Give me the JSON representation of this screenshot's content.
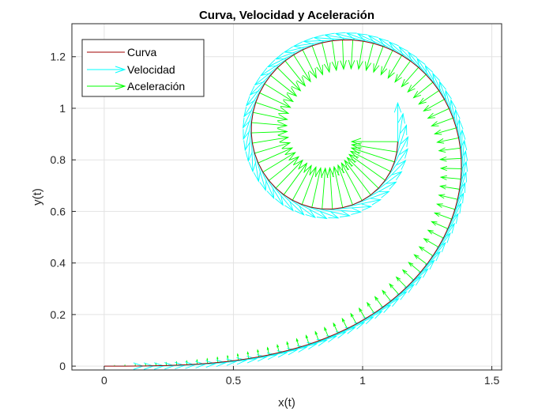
{
  "chart_data": {
    "type": "line",
    "title": "Curva, Velocidad y Aceleración",
    "xlabel": "x(t)",
    "ylabel": "y(t)",
    "xlim": [
      -0.125,
      1.538
    ],
    "ylim": [
      -0.015,
      1.328
    ],
    "xticks": [
      0,
      0.5,
      1,
      1.5
    ],
    "xtick_labels": [
      "0",
      "0.5",
      "1",
      "1.5"
    ],
    "yticks": [
      0,
      0.2,
      0.4,
      0.6,
      0.8,
      1,
      1.2
    ],
    "ytick_labels": [
      "0",
      "0.2",
      "0.4",
      "0.6",
      "0.8",
      "1",
      "1.2"
    ],
    "grid": true,
    "legend_position": "top-left",
    "curve": {
      "x_expr": "integral of cos(s^2/2) ds from 0 to t",
      "y_expr": "integral of sin(s^2/2) ds from 0 to t",
      "t_range": [
        0,
        3.963
      ],
      "samples": 100
    },
    "series": [
      {
        "name": "Curva",
        "color": "#a00000"
      },
      {
        "name": "Velocidad",
        "color": "#00ffff"
      },
      {
        "name": "Aceleración",
        "color": "#00ff00"
      }
    ]
  }
}
